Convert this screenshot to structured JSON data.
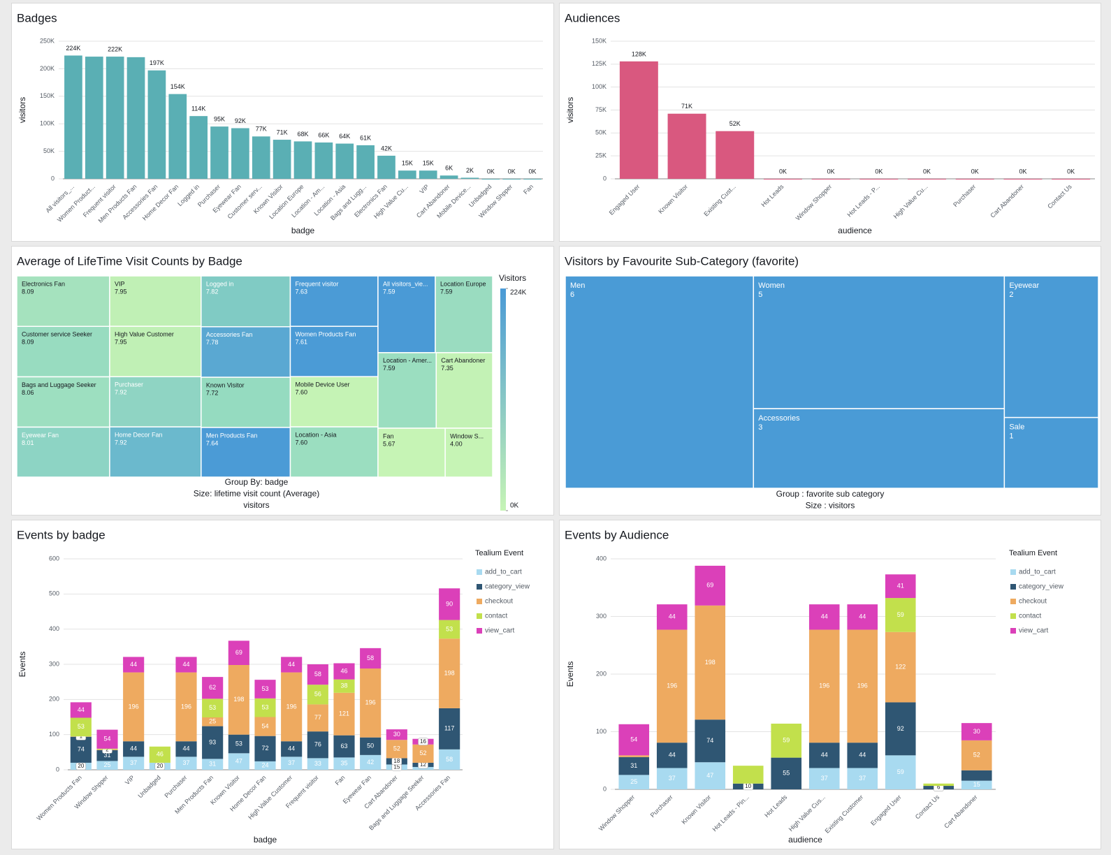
{
  "chart_data": [
    {
      "type": "bar",
      "title": "Badges",
      "x_label": "badge",
      "y_label": "visitors",
      "color": "#5aafb4",
      "grid": true,
      "categories": [
        "All visitors_...",
        "Women Product...",
        "Frequent visitor",
        "Men Products Fan",
        "Accessories Fan",
        "Home Decor Fan",
        "Logged in",
        "Purchaser",
        "Eyewear Fan",
        "Customer serv...",
        "Known Visitor",
        "Location Europe",
        "Location - Am...",
        "Location - Asia",
        "Bags and Lugg...",
        "Electronics Fan",
        "High Value Cu...",
        "VIP",
        "Cart Abandoner",
        "Mobile Device...",
        "Unbadged",
        "Window Shpper",
        "Fan"
      ],
      "values": [
        224000,
        222000,
        222000,
        221000,
        197000,
        154000,
        114000,
        95000,
        92000,
        77000,
        71000,
        68000,
        66000,
        64000,
        61000,
        42000,
        15000,
        15000,
        6000,
        2000,
        0,
        0,
        0
      ],
      "value_labels": [
        "224K",
        null,
        "222K",
        null,
        "197K",
        "154K",
        "114K",
        "95K",
        "92K",
        "77K",
        "71K",
        "68K",
        "66K",
        "64K",
        "61K",
        "42K",
        "15K",
        "15K",
        "6K",
        "2K",
        "0K",
        "0K",
        "0K"
      ],
      "ylim": [
        0,
        250000
      ],
      "yticks": [
        0,
        {
          "value": 50000,
          "label": "50K"
        },
        {
          "value": 100000,
          "label": "100K"
        },
        {
          "value": 150000,
          "label": "150K"
        },
        {
          "value": 200000,
          "label": "200K"
        },
        {
          "value": 250000,
          "label": "250K"
        }
      ]
    },
    {
      "type": "bar",
      "title": "Audiences",
      "x_label": "audience",
      "y_label": "visitors",
      "color": "#d9587f",
      "grid": true,
      "categories": [
        "Engaged User",
        "Known Visitor",
        "Existing Cust...",
        "Hot Leads",
        "Window Shopper",
        "Hot Leads - P...",
        "High Value Cu...",
        "Purchaser",
        "Cart Abandoner",
        "Contact Us"
      ],
      "values": [
        128000,
        71000,
        52000,
        0,
        0,
        0,
        0,
        0,
        0,
        0
      ],
      "value_labels": [
        "128K",
        "71K",
        "52K",
        "0K",
        "0K",
        "0K",
        "0K",
        "0K",
        "0K",
        "0K"
      ],
      "ylim": [
        0,
        150000
      ],
      "yticks": [
        0,
        {
          "value": 25000,
          "label": "25K"
        },
        {
          "value": 50000,
          "label": "50K"
        },
        {
          "value": 75000,
          "label": "75K"
        },
        {
          "value": 100000,
          "label": "100K"
        },
        {
          "value": 125000,
          "label": "125K"
        },
        {
          "value": 150000,
          "label": "150K"
        }
      ]
    },
    {
      "type": "treemap",
      "title": "Average of LifeTime Visit Counts by Badge",
      "labels": [
        "Electronics Fan",
        "Customer service Seeker",
        "Bags and Luggage Seeker",
        "Eyewear Fan",
        "VIP",
        "High Value Customer",
        "Purchaser",
        "Home Decor Fan",
        "Logged in",
        "Accessories Fan",
        "Known Visitor",
        "Men Products Fan",
        "Frequent visitor",
        "Women Products Fan",
        "Mobile Device User",
        "Location - Asia",
        "All visitors_vie...",
        "Location Europe",
        "Location - Amer...",
        "Cart Abandoner",
        "Fan",
        "Window S..."
      ],
      "values": [
        8.09,
        8.09,
        8.06,
        8.01,
        7.95,
        7.95,
        7.92,
        7.92,
        7.82,
        7.78,
        7.72,
        7.64,
        7.63,
        7.61,
        7.6,
        7.6,
        7.59,
        7.59,
        7.59,
        7.35,
        5.67,
        4.0
      ],
      "value_labels": [
        "8.09",
        "8.09",
        "8.06",
        "8.01",
        "7.95",
        "7.95",
        "7.92",
        "7.92",
        "7.82",
        "7.78",
        "7.72",
        "7.64",
        "7.63",
        "7.61",
        "7.60",
        "7.60",
        "7.59",
        "7.59",
        "7.59",
        "7.35",
        "5.67",
        "4.00"
      ],
      "colors": [
        "#a5e2be",
        "#98dcc0",
        "#9ddfc0",
        "#8dd4c4",
        "#c0f0b5",
        "#c0f0b5",
        "#8fd4c3",
        "#6bb9cd",
        "#80cbc4",
        "#5aa8d2",
        "#95dbc0",
        "#4b9bd6",
        "#4b9bd6",
        "#4b9bd6",
        "#c5f3b5",
        "#9bdec0",
        "#4a9ad6",
        "#9adcc0",
        "#9bdec0",
        "#c3f2b5",
        "#c6f4b5",
        "#c6f4b5"
      ],
      "colorbar_title": "Visitors",
      "colorlim": [
        0,
        224000
      ],
      "colorbar_ticks": [
        {
          "value": 224000,
          "label": "224K"
        },
        {
          "value": 0,
          "label": "0K"
        }
      ],
      "captions": [
        "Group By: badge",
        "Size: lifetime visit count (Average)",
        "visitors"
      ]
    },
    {
      "type": "treemap",
      "title": "Visitors by Favourite Sub-Category (favorite)",
      "color": "#4a9bd6",
      "labels": [
        "Men",
        "Women",
        "Accessories",
        "Eyewear",
        "Sale"
      ],
      "values": [
        6,
        5,
        3,
        2,
        1
      ],
      "captions": [
        "Group : favorite sub category",
        "Size : visitors"
      ]
    },
    {
      "type": "bar",
      "stacked": true,
      "title": "Events by badge",
      "x_label": "badge",
      "y_label": "Events",
      "grid": true,
      "legend_title": "Tealium Event",
      "legend": "right",
      "categories": [
        "Women Products Fan",
        "Window Shpper",
        "VIP",
        "Unbadged",
        "Purchaser",
        "Men Products Fan",
        "Known Visitor",
        "Home Decor Fan",
        "High Value Customer",
        "Frequent visitor",
        "Fan",
        "Eyewear Fan",
        "Cart Abandoner",
        "Bags and Luggage Seeker",
        "Accessories Fan"
      ],
      "ylim": [
        0,
        600
      ],
      "yticks": [
        0,
        100,
        200,
        300,
        400,
        500,
        600
      ],
      "series": [
        {
          "name": "add_to_cart",
          "color": "#a8daf0",
          "values": [
            20,
            25,
            37,
            20,
            37,
            31,
            47,
            24,
            37,
            33,
            35,
            42,
            15,
            8,
            58
          ],
          "value_labels": [
            "20",
            "25",
            "37",
            "20",
            "37",
            "31",
            "47",
            "24",
            "37",
            "33",
            "35",
            "42",
            "15",
            null,
            "58"
          ]
        },
        {
          "name": "category_view",
          "color": "#2f5673",
          "values": [
            74,
            31,
            44,
            null,
            44,
            93,
            53,
            72,
            44,
            76,
            63,
            50,
            18,
            12,
            117
          ]
        },
        {
          "name": "checkout",
          "color": "#eeaa60",
          "values": [
            1,
            2,
            196,
            null,
            196,
            25,
            198,
            54,
            196,
            77,
            121,
            196,
            52,
            52,
            198
          ]
        },
        {
          "name": "contact",
          "color": "#c2e04c",
          "values": [
            53,
            2,
            null,
            46,
            null,
            53,
            null,
            53,
            null,
            56,
            38,
            null,
            null,
            null,
            53
          ],
          "value_labels": [
            "53",
            null,
            null,
            "46",
            null,
            "53",
            null,
            "53",
            null,
            "56",
            "38",
            null,
            null,
            null,
            "53"
          ]
        },
        {
          "name": "view_cart",
          "color": "#db40b9",
          "values": [
            44,
            54,
            44,
            null,
            44,
            62,
            69,
            53,
            44,
            58,
            46,
            58,
            30,
            16,
            90
          ]
        }
      ]
    },
    {
      "type": "bar",
      "stacked": true,
      "title": "Events by Audience",
      "x_label": "audience",
      "y_label": "Events",
      "grid": true,
      "legend_title": "Tealium Event",
      "legend": "right",
      "categories": [
        "Window Shopper",
        "Purchaser",
        "Known Visitor",
        "Hot Leads - Pin...",
        "Hot Leads",
        "High Value Cus...",
        "Existing Customer",
        "Engaged User",
        "Contact Us",
        "Cart Abandoner"
      ],
      "ylim": [
        0,
        400
      ],
      "yticks": [
        0,
        100,
        200,
        300,
        400
      ],
      "series": [
        {
          "name": "add_to_cart",
          "color": "#a8daf0",
          "values": [
            25,
            37,
            47,
            null,
            null,
            37,
            37,
            59,
            null,
            15
          ]
        },
        {
          "name": "category_view",
          "color": "#2f5673",
          "values": [
            31,
            44,
            74,
            10,
            55,
            44,
            44,
            92,
            6,
            18
          ],
          "value_labels": [
            "31",
            "44",
            "74",
            "10",
            "55",
            "44",
            "44",
            "92",
            "6",
            null
          ]
        },
        {
          "name": "checkout",
          "color": "#eeaa60",
          "values": [
            3,
            196,
            198,
            null,
            null,
            196,
            196,
            122,
            null,
            52
          ],
          "value_labels": [
            null,
            "196",
            "198",
            null,
            null,
            "196",
            "196",
            "122",
            null,
            "52"
          ]
        },
        {
          "name": "contact",
          "color": "#c2e04c",
          "values": [
            null,
            null,
            null,
            31,
            59,
            null,
            null,
            59,
            4,
            null
          ],
          "value_labels": [
            null,
            null,
            null,
            null,
            "59",
            null,
            null,
            "59",
            null,
            null
          ]
        },
        {
          "name": "view_cart",
          "color": "#db40b9",
          "values": [
            54,
            44,
            69,
            null,
            null,
            44,
            44,
            41,
            null,
            30
          ]
        }
      ]
    }
  ]
}
